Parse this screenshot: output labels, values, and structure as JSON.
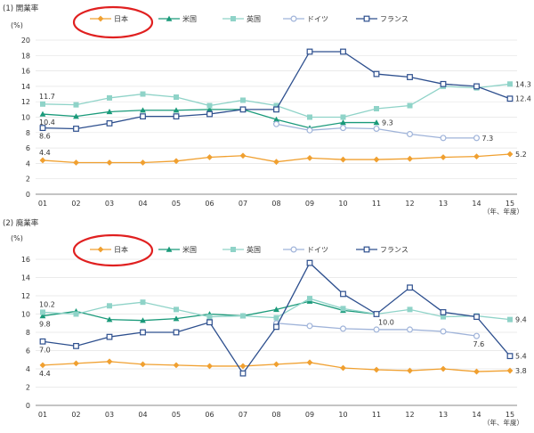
{
  "chart_data": [
    {
      "type": "line",
      "title": "(1) 開業率",
      "ylabel": "(%)",
      "xlabel": "（年、年度）",
      "x": [
        "01",
        "02",
        "03",
        "04",
        "05",
        "06",
        "07",
        "08",
        "09",
        "10",
        "11",
        "12",
        "13",
        "14",
        "15"
      ],
      "ylim": [
        0,
        20
      ],
      "yticks": [
        0,
        2,
        4,
        6,
        8,
        10,
        12,
        14,
        16,
        18,
        20
      ],
      "grid": true,
      "legend_position": "top",
      "series": [
        {
          "name": "日本",
          "color": "#f0a030",
          "marker": "diamond",
          "values": [
            4.4,
            4.1,
            4.1,
            4.1,
            4.3,
            4.8,
            5.0,
            4.2,
            4.7,
            4.5,
            4.5,
            4.6,
            4.8,
            4.9,
            5.2
          ]
        },
        {
          "name": "米国",
          "color": "#1a9a7a",
          "marker": "triangle",
          "values": [
            10.4,
            10.1,
            10.7,
            10.9,
            10.9,
            11.0,
            11.0,
            9.7,
            8.6,
            9.3,
            9.3,
            null,
            null,
            null,
            null
          ]
        },
        {
          "name": "英国",
          "color": "#8fd3c8",
          "marker": "square",
          "values": [
            11.7,
            11.6,
            12.5,
            13.0,
            12.6,
            11.5,
            12.2,
            11.5,
            10.0,
            10.0,
            11.1,
            11.5,
            14.0,
            13.8,
            14.3
          ]
        },
        {
          "name": "ドイツ",
          "color": "#9fb3d9",
          "marker": "circle-open",
          "values": [
            null,
            null,
            null,
            null,
            null,
            null,
            null,
            9.1,
            8.3,
            8.6,
            8.5,
            7.8,
            7.3,
            7.3,
            null
          ]
        },
        {
          "name": "フランス",
          "color": "#2d4f8e",
          "marker": "square-open",
          "values": [
            8.6,
            8.5,
            9.2,
            10.1,
            10.1,
            10.4,
            11.0,
            11.0,
            18.5,
            18.5,
            15.6,
            15.2,
            14.3,
            14.0,
            12.4
          ]
        }
      ],
      "data_labels": [
        {
          "series": 2,
          "index": 0,
          "text": "11.7",
          "pos": "above"
        },
        {
          "series": 1,
          "index": 0,
          "text": "10.4",
          "pos": "below"
        },
        {
          "series": 4,
          "index": 0,
          "text": "8.6",
          "pos": "below"
        },
        {
          "series": 0,
          "index": 0,
          "text": "4.4",
          "pos": "above"
        },
        {
          "series": 1,
          "index": 10,
          "text": "9.3",
          "pos": "right"
        },
        {
          "series": 3,
          "index": 13,
          "text": "7.3",
          "pos": "right"
        },
        {
          "series": 2,
          "index": 14,
          "text": "14.3",
          "pos": "right"
        },
        {
          "series": 4,
          "index": 14,
          "text": "12.4",
          "pos": "right"
        },
        {
          "series": 0,
          "index": 14,
          "text": "5.2",
          "pos": "right"
        }
      ]
    },
    {
      "type": "line",
      "title": "(2) 廃業率",
      "ylabel": "(%)",
      "xlabel": "（年、年度）",
      "x": [
        "01",
        "02",
        "03",
        "04",
        "05",
        "06",
        "07",
        "08",
        "09",
        "10",
        "11",
        "12",
        "13",
        "14",
        "15"
      ],
      "ylim": [
        0,
        16
      ],
      "yticks": [
        0,
        2,
        4,
        6,
        8,
        10,
        12,
        14,
        16
      ],
      "grid": true,
      "legend_position": "top",
      "series": [
        {
          "name": "日本",
          "color": "#f0a030",
          "marker": "diamond",
          "values": [
            4.4,
            4.6,
            4.8,
            4.5,
            4.4,
            4.3,
            4.3,
            4.5,
            4.7,
            4.1,
            3.9,
            3.8,
            4.0,
            3.7,
            3.8
          ]
        },
        {
          "name": "米国",
          "color": "#1a9a7a",
          "marker": "triangle",
          "values": [
            9.8,
            10.3,
            9.4,
            9.3,
            9.5,
            10.0,
            9.8,
            10.5,
            11.4,
            10.4,
            10.0,
            null,
            null,
            null,
            null
          ]
        },
        {
          "name": "英国",
          "color": "#8fd3c8",
          "marker": "square",
          "values": [
            10.2,
            10.0,
            10.9,
            11.3,
            10.5,
            9.7,
            9.8,
            9.6,
            11.7,
            10.6,
            10.0,
            10.5,
            9.7,
            9.8,
            9.4
          ]
        },
        {
          "name": "ドイツ",
          "color": "#9fb3d9",
          "marker": "circle-open",
          "values": [
            null,
            null,
            null,
            null,
            null,
            null,
            null,
            9.0,
            8.7,
            8.4,
            8.3,
            8.3,
            8.1,
            7.6,
            null
          ]
        },
        {
          "name": "フランス",
          "color": "#2d4f8e",
          "marker": "square-open",
          "values": [
            7.0,
            6.5,
            7.5,
            8.0,
            8.0,
            9.1,
            3.5,
            8.6,
            15.6,
            12.2,
            10.0,
            12.9,
            10.2,
            9.7,
            5.4
          ]
        }
      ],
      "data_labels": [
        {
          "series": 2,
          "index": 0,
          "text": "10.2",
          "pos": "above"
        },
        {
          "series": 1,
          "index": 0,
          "text": "9.8",
          "pos": "below"
        },
        {
          "series": 4,
          "index": 0,
          "text": "7.0",
          "pos": "below"
        },
        {
          "series": 0,
          "index": 0,
          "text": "4.4",
          "pos": "below"
        },
        {
          "series": 1,
          "index": 10,
          "text": "10.0",
          "pos": "below-right"
        },
        {
          "series": 3,
          "index": 13,
          "text": "7.6",
          "pos": "below"
        },
        {
          "series": 2,
          "index": 14,
          "text": "9.4",
          "pos": "right"
        },
        {
          "series": 4,
          "index": 14,
          "text": "5.4",
          "pos": "right"
        },
        {
          "series": 0,
          "index": 14,
          "text": "3.8",
          "pos": "right"
        }
      ]
    }
  ],
  "highlight": {
    "color": "#e02020",
    "target_series": "日本"
  }
}
